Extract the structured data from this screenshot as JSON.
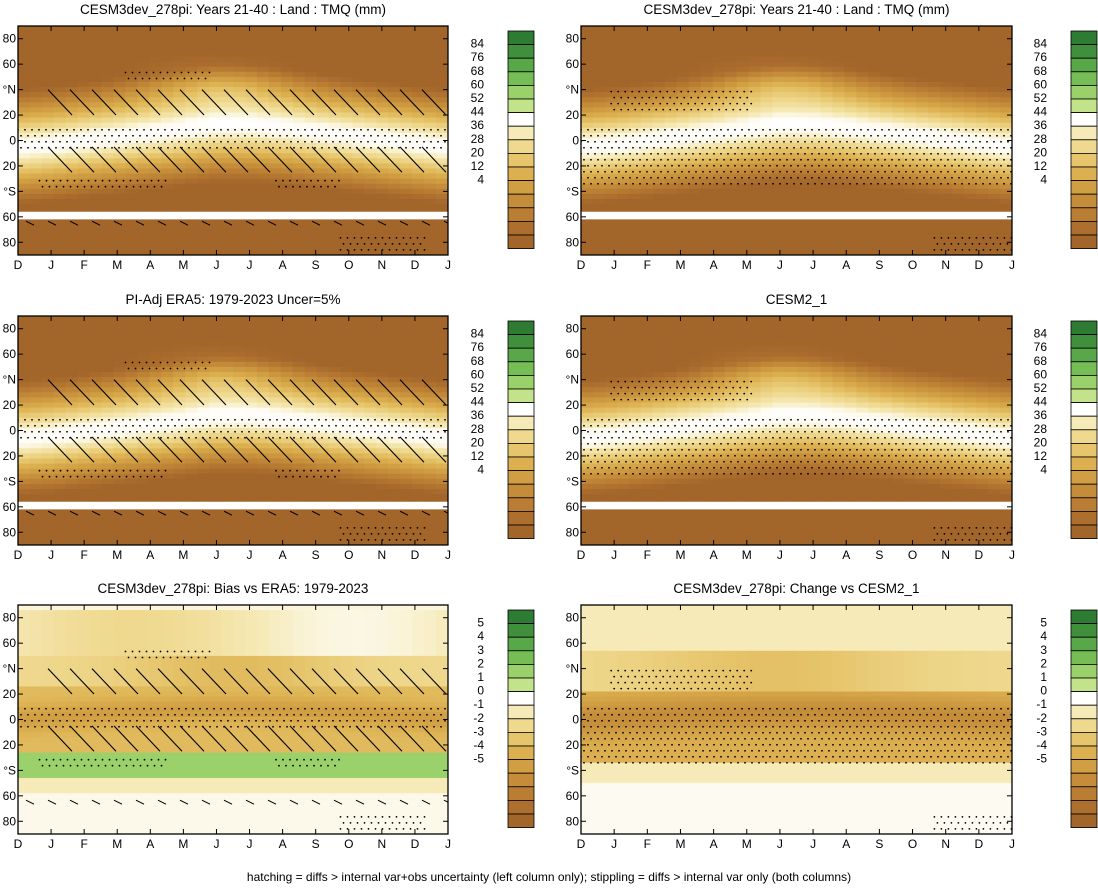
{
  "footnote": "hatching = diffs > internal var+obs uncertainty (left column only); stippling = diffs > internal var only (both columns)",
  "month_ticks": [
    "D",
    "J",
    "F",
    "M",
    "A",
    "M",
    "J",
    "J",
    "A",
    "S",
    "O",
    "N",
    "D",
    "J"
  ],
  "lat_ticks": [
    "80",
    "60",
    "°N",
    "20",
    "0",
    "20",
    "°S",
    "60",
    "80"
  ],
  "colors": {
    "plot_bg": "#ffffff",
    "frame": "#000000",
    "mark": "#000000"
  },
  "chart_data": [
    {
      "type": "heatmap",
      "panel": "top-left",
      "title": "CESM3dev_278pi: Years 21-40 : Land : TMQ (mm)",
      "xlabel": "",
      "ylabel": "",
      "x_categories": [
        "D",
        "J",
        "F",
        "M",
        "A",
        "M",
        "J",
        "J",
        "A",
        "S",
        "O",
        "N",
        "D",
        "J"
      ],
      "ylim": [
        -90,
        90
      ],
      "colorbar_labels": [
        "84",
        "76",
        "68",
        "60",
        "52",
        "44",
        "36",
        "28",
        "20",
        "12",
        "4"
      ],
      "colorbar_colors": [
        "#2e7b34",
        "#3f8f3c",
        "#58a748",
        "#77bd55",
        "#9bd16a",
        "#c2e38a",
        "#ffffff",
        "#f6eab8",
        "#efd98f",
        "#e6c56c",
        "#dcb050",
        "#d09e43",
        "#c58d3a",
        "#b97d33",
        "#ad6f2e",
        "#a2652a"
      ],
      "field": "absolute",
      "wet_band_center_lat": [
        -5,
        -3,
        0,
        3,
        6,
        9,
        12,
        12,
        10,
        7,
        4,
        1,
        -2,
        -5
      ],
      "hatching": true,
      "stippling": true
    },
    {
      "type": "heatmap",
      "panel": "top-right",
      "title": "CESM3dev_278pi: Years 21-40 : Land : TMQ (mm)",
      "xlabel": "",
      "ylabel": "",
      "x_categories": [
        "D",
        "J",
        "F",
        "M",
        "A",
        "M",
        "J",
        "J",
        "A",
        "S",
        "O",
        "N",
        "D",
        "J"
      ],
      "ylim": [
        -90,
        90
      ],
      "colorbar_labels": [
        "84",
        "76",
        "68",
        "60",
        "52",
        "44",
        "36",
        "28",
        "20",
        "12",
        "4"
      ],
      "colorbar_colors": [
        "#2e7b34",
        "#3f8f3c",
        "#58a748",
        "#77bd55",
        "#9bd16a",
        "#c2e38a",
        "#ffffff",
        "#f6eab8",
        "#efd98f",
        "#e6c56c",
        "#dcb050",
        "#d09e43",
        "#c58d3a",
        "#b97d33",
        "#ad6f2e",
        "#a2652a"
      ],
      "field": "absolute",
      "wet_band_center_lat": [
        -5,
        -3,
        0,
        3,
        6,
        9,
        12,
        12,
        10,
        7,
        4,
        1,
        -2,
        -5
      ],
      "hatching": false,
      "stippling": true
    },
    {
      "type": "heatmap",
      "panel": "middle-left",
      "title": "PI-Adj ERA5: 1979-2023 Uncer=5%",
      "xlabel": "",
      "ylabel": "",
      "x_categories": [
        "D",
        "J",
        "F",
        "M",
        "A",
        "M",
        "J",
        "J",
        "A",
        "S",
        "O",
        "N",
        "D",
        "J"
      ],
      "ylim": [
        -90,
        90
      ],
      "colorbar_labels": [
        "84",
        "76",
        "68",
        "60",
        "52",
        "44",
        "36",
        "28",
        "20",
        "12",
        "4"
      ],
      "colorbar_colors": [
        "#2e7b34",
        "#3f8f3c",
        "#58a748",
        "#77bd55",
        "#9bd16a",
        "#c2e38a",
        "#ffffff",
        "#f6eab8",
        "#efd98f",
        "#e6c56c",
        "#dcb050",
        "#d09e43",
        "#c58d3a",
        "#b97d33",
        "#ad6f2e",
        "#a2652a"
      ],
      "field": "absolute",
      "wet_band_center_lat": [
        -6,
        -4,
        -1,
        2,
        5,
        8,
        11,
        11,
        9,
        6,
        3,
        0,
        -3,
        -6
      ],
      "hatching": true,
      "stippling": true
    },
    {
      "type": "heatmap",
      "panel": "middle-right",
      "title": "CESM2_1",
      "xlabel": "",
      "ylabel": "",
      "x_categories": [
        "D",
        "J",
        "F",
        "M",
        "A",
        "M",
        "J",
        "J",
        "A",
        "S",
        "O",
        "N",
        "D",
        "J"
      ],
      "ylim": [
        -90,
        90
      ],
      "colorbar_labels": [
        "84",
        "76",
        "68",
        "60",
        "52",
        "44",
        "36",
        "28",
        "20",
        "12",
        "4"
      ],
      "colorbar_colors": [
        "#2e7b34",
        "#3f8f3c",
        "#58a748",
        "#77bd55",
        "#9bd16a",
        "#c2e38a",
        "#ffffff",
        "#f6eab8",
        "#efd98f",
        "#e6c56c",
        "#dcb050",
        "#d09e43",
        "#c58d3a",
        "#b97d33",
        "#ad6f2e",
        "#a2652a"
      ],
      "field": "absolute",
      "wet_band_center_lat": [
        -6,
        -4,
        -1,
        2,
        5,
        8,
        11,
        11,
        9,
        6,
        3,
        0,
        -3,
        -6
      ],
      "hatching": false,
      "stippling": true
    },
    {
      "type": "heatmap",
      "panel": "bottom-left",
      "title": "CESM3dev_278pi: Bias vs ERA5: 1979-2023",
      "xlabel": "",
      "ylabel": "",
      "x_categories": [
        "D",
        "J",
        "F",
        "M",
        "A",
        "M",
        "J",
        "J",
        "A",
        "S",
        "O",
        "N",
        "D",
        "J"
      ],
      "ylim": [
        -90,
        90
      ],
      "colorbar_labels": [
        "5",
        "4",
        "3",
        "2",
        "1",
        "0",
        "-1",
        "-2",
        "-3",
        "-4",
        "-5"
      ],
      "colorbar_colors": [
        "#2e7b34",
        "#3f8f3c",
        "#58a748",
        "#77bd55",
        "#9bd16a",
        "#c2e38a",
        "#ffffff",
        "#f6eab8",
        "#efd98f",
        "#e6c56c",
        "#dcb050",
        "#d09e43",
        "#c58d3a",
        "#b97d33",
        "#ad6f2e",
        "#a2652a"
      ],
      "field": "bias",
      "hatching": true,
      "stippling": true
    },
    {
      "type": "heatmap",
      "panel": "bottom-right",
      "title": "CESM3dev_278pi: Change vs CESM2_1",
      "xlabel": "",
      "ylabel": "",
      "x_categories": [
        "D",
        "J",
        "F",
        "M",
        "A",
        "M",
        "J",
        "J",
        "A",
        "S",
        "O",
        "N",
        "D",
        "J"
      ],
      "ylim": [
        -90,
        90
      ],
      "colorbar_labels": [
        "5",
        "4",
        "3",
        "2",
        "1",
        "0",
        "-1",
        "-2",
        "-3",
        "-4",
        "-5"
      ],
      "colorbar_colors": [
        "#2e7b34",
        "#3f8f3c",
        "#58a748",
        "#77bd55",
        "#9bd16a",
        "#c2e38a",
        "#ffffff",
        "#f6eab8",
        "#efd98f",
        "#e6c56c",
        "#dcb050",
        "#d09e43",
        "#c58d3a",
        "#b97d33",
        "#ad6f2e",
        "#a2652a"
      ],
      "field": "change",
      "hatching": false,
      "stippling": true
    }
  ]
}
